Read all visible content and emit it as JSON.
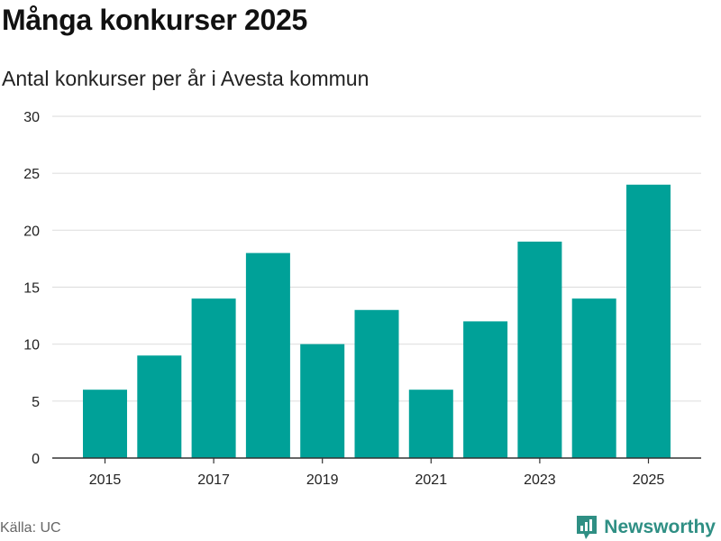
{
  "title": "Många konkurser 2025",
  "subtitle": "Antal konkurser per år i Avesta kommun",
  "source": "Källa: UC",
  "brand": {
    "name": "Newsworthy",
    "icon": "newsworthy-logo-icon",
    "color": "#2f8f84"
  },
  "chart_data": {
    "type": "bar",
    "categories": [
      "2015",
      "2016",
      "2017",
      "2018",
      "2019",
      "2020",
      "2021",
      "2022",
      "2023",
      "2024",
      "2025"
    ],
    "values": [
      6,
      9,
      14,
      18,
      10,
      13,
      6,
      12,
      19,
      14,
      24
    ],
    "x_tick_labels": [
      "2015",
      "2017",
      "2019",
      "2021",
      "2023",
      "2025"
    ],
    "y_ticks": [
      0,
      5,
      10,
      15,
      20,
      25,
      30
    ],
    "ylim": [
      0,
      30
    ],
    "xlabel": "",
    "ylabel": "",
    "grid": true,
    "bar_color": "#00a198",
    "grid_color": "#e0e0e0"
  }
}
